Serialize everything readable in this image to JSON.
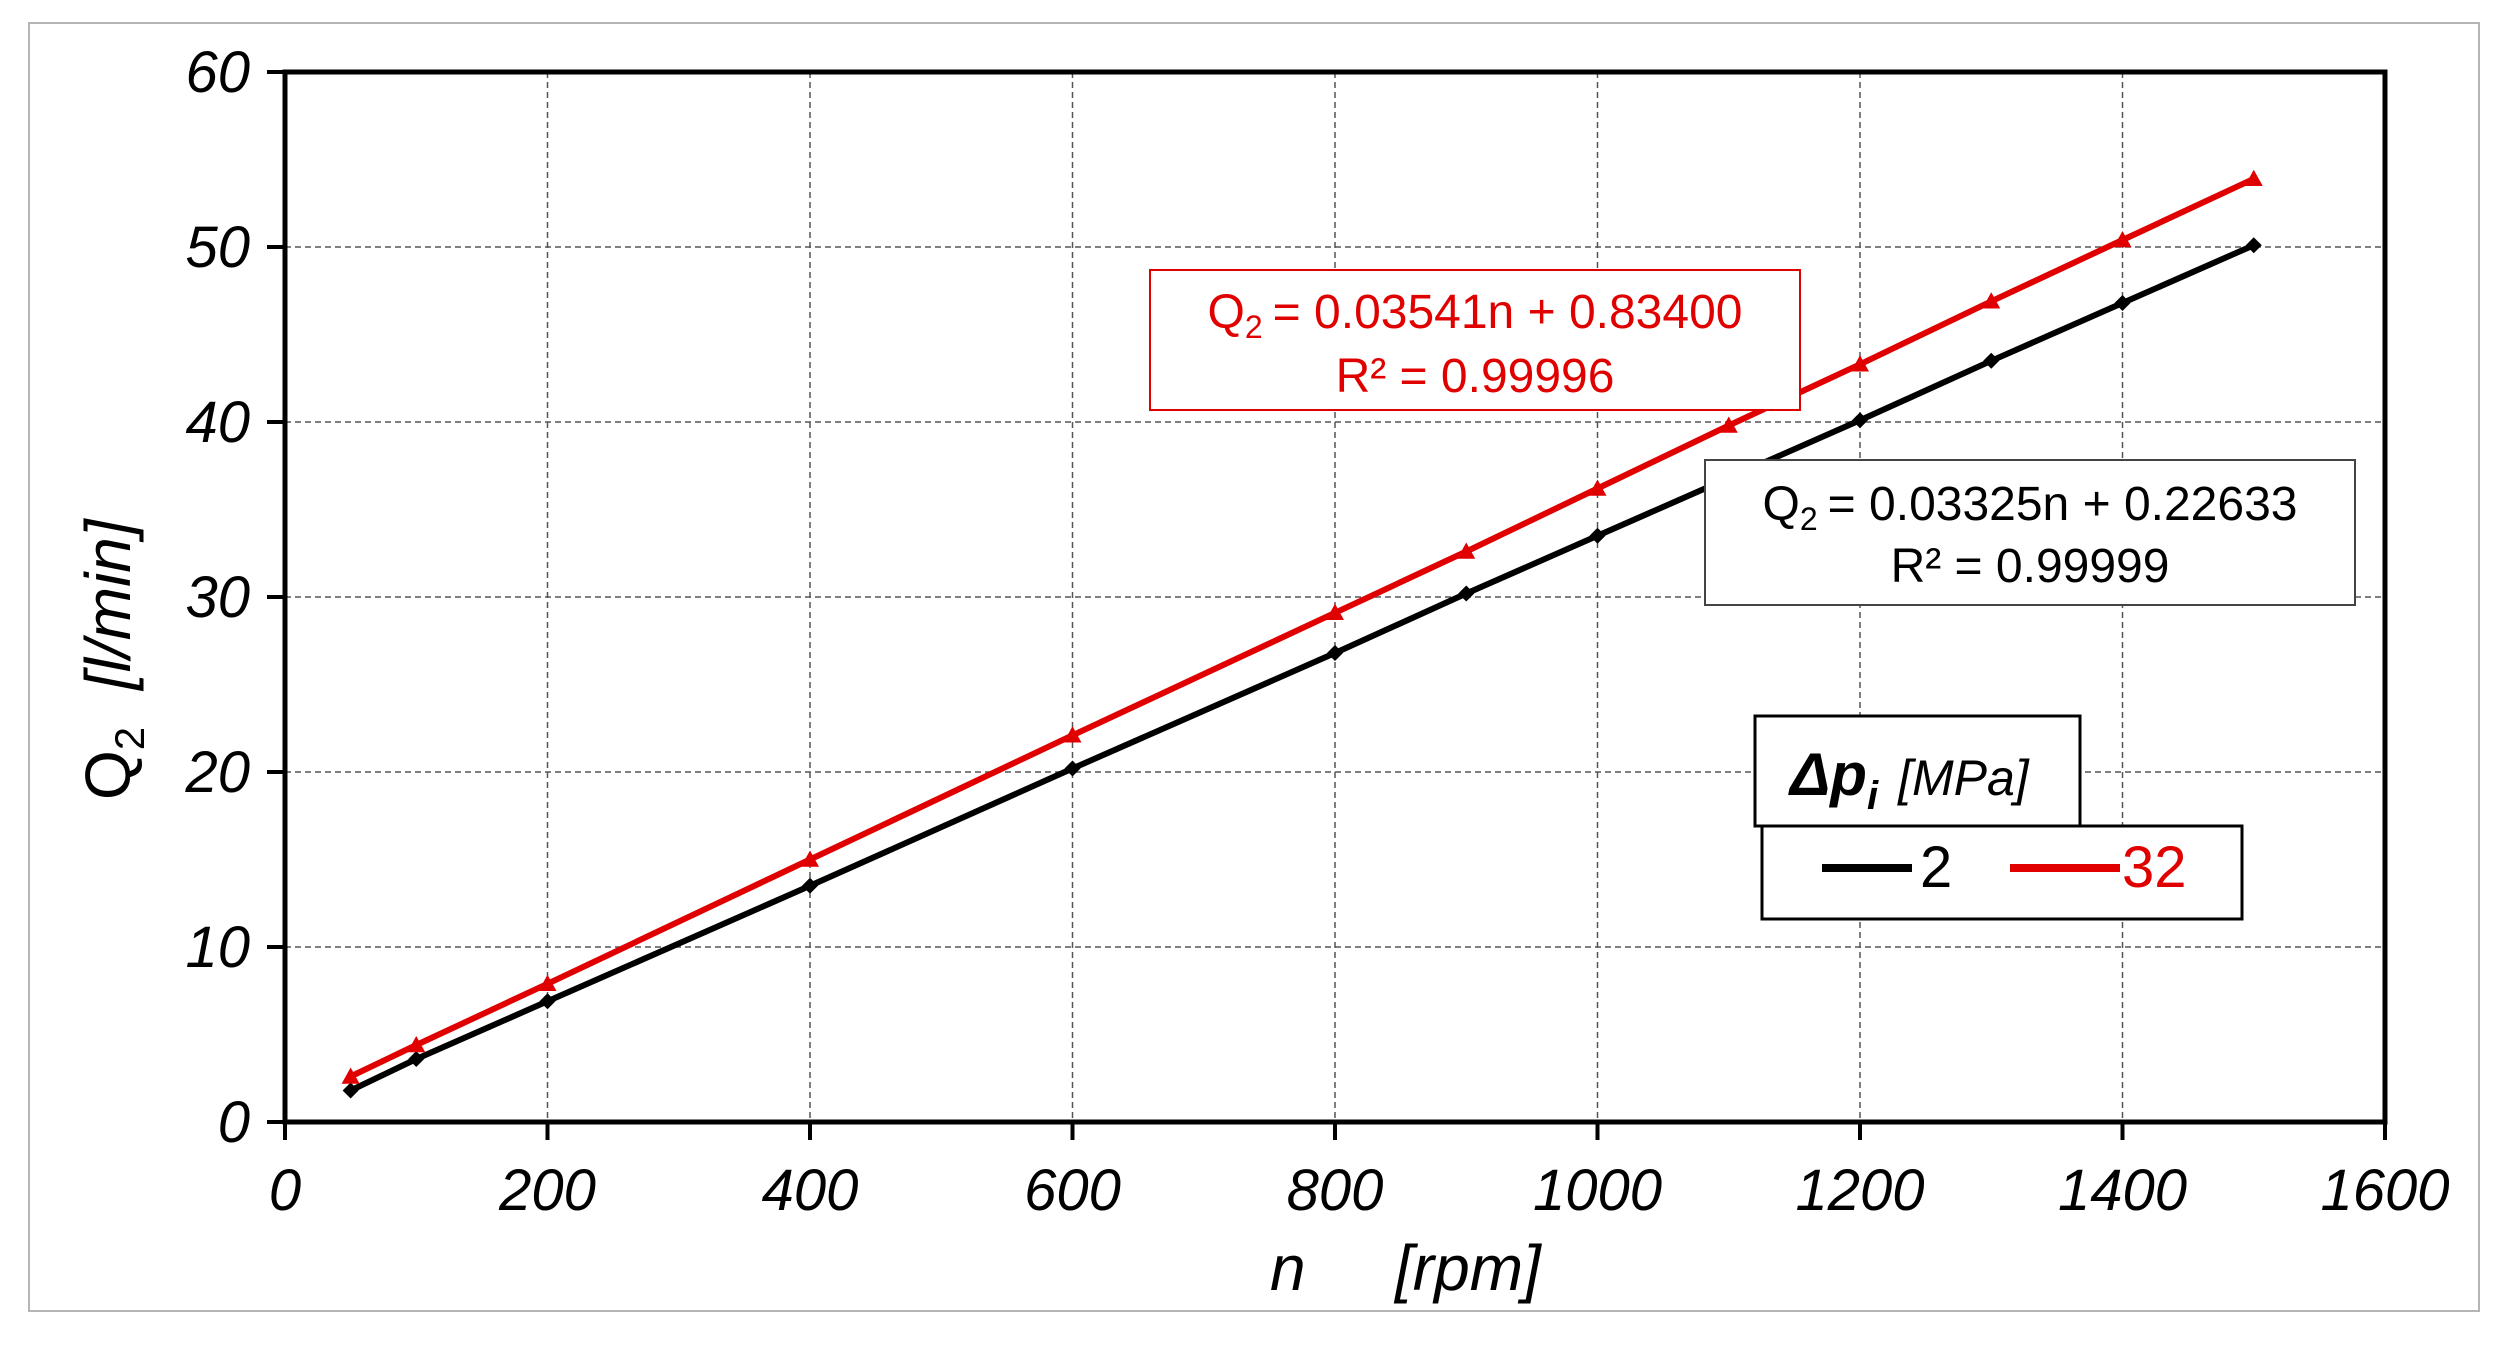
{
  "chart_data": {
    "type": "line",
    "xlabel": "n",
    "xunit": "[rpm]",
    "ylabel": "Q",
    "ylabel_sub": "2",
    "yunit": "[l/min]",
    "xlim": [
      0,
      1600
    ],
    "ylim": [
      0,
      60
    ],
    "xticks": [
      "0",
      "200",
      "400",
      "600",
      "800",
      "1000",
      "1200",
      "1400",
      "1600"
    ],
    "yticks": [
      "0",
      "10",
      "20",
      "30",
      "40",
      "50",
      "60"
    ],
    "grid": true,
    "legend": {
      "title": "Δp",
      "title_sub": "i",
      "title_unit": "[MPa]",
      "placement": "right"
    },
    "series": [
      {
        "name": "2",
        "color": "#000000",
        "marker": "diamond",
        "x": [
          50,
          100,
          200,
          400,
          600,
          800,
          900,
          1000,
          1200,
          1300,
          1400,
          1500
        ],
        "y": [
          1.8,
          3.6,
          6.9,
          13.5,
          20.2,
          26.8,
          30.2,
          33.5,
          40.1,
          43.5,
          46.8,
          50.1
        ],
        "equation_line1": "= 0.03325n + 0.22633",
        "equation_line2": "R² = 0.99999"
      },
      {
        "name": "32",
        "color": "#e00000",
        "marker": "triangle",
        "x": [
          50,
          100,
          200,
          400,
          600,
          800,
          900,
          1000,
          1100,
          1200,
          1300,
          1400,
          1500
        ],
        "y": [
          2.6,
          4.4,
          7.9,
          15.0,
          22.1,
          29.1,
          32.6,
          36.2,
          39.8,
          43.3,
          46.9,
          50.4,
          53.9
        ],
        "equation_line1": "= 0.03541n + 0.83400",
        "equation_line2": "R² = 0.99996"
      }
    ],
    "equation_prefix": "Q",
    "equation_sub": "2"
  }
}
